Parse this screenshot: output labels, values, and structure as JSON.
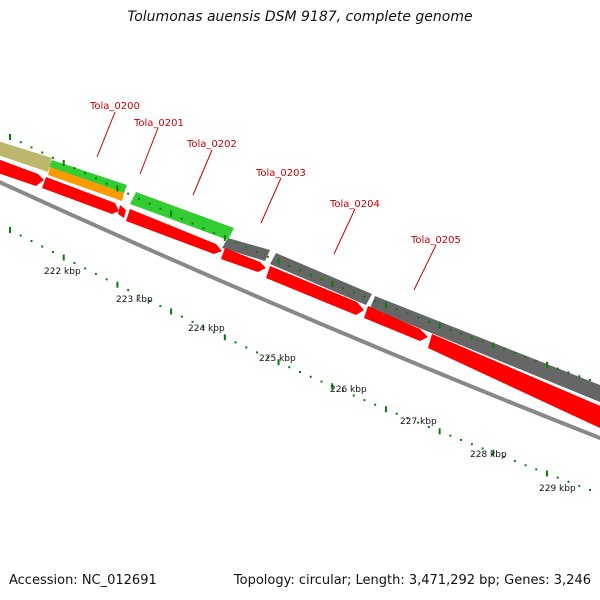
{
  "title": "Tolumonas auensis DSM 9187, complete genome",
  "footer": {
    "accession": "Accession: NC_012691",
    "summary": "Topology: circular; Length: 3,471,292 bp; Genes: 3,246"
  },
  "gene_labels": [
    "Tola_0200",
    "Tola_0201",
    "Tola_0202",
    "Tola_0203",
    "Tola_0204",
    "Tola_0205"
  ],
  "kbp_labels": [
    "222 kbp",
    "223 kbp",
    "224 kbp",
    "225 kbp",
    "226 kbp",
    "227 kbp",
    "228 kbp",
    "229 kbp"
  ],
  "colors": {
    "cds_forward_red": "#ff0000",
    "gray_feature": "#666666",
    "green_feature": "#33cc33",
    "orange_feature": "#ff9900",
    "khaki_feature": "#bdb76b",
    "tick_green": "#008000",
    "label_red": "#cc0000"
  }
}
